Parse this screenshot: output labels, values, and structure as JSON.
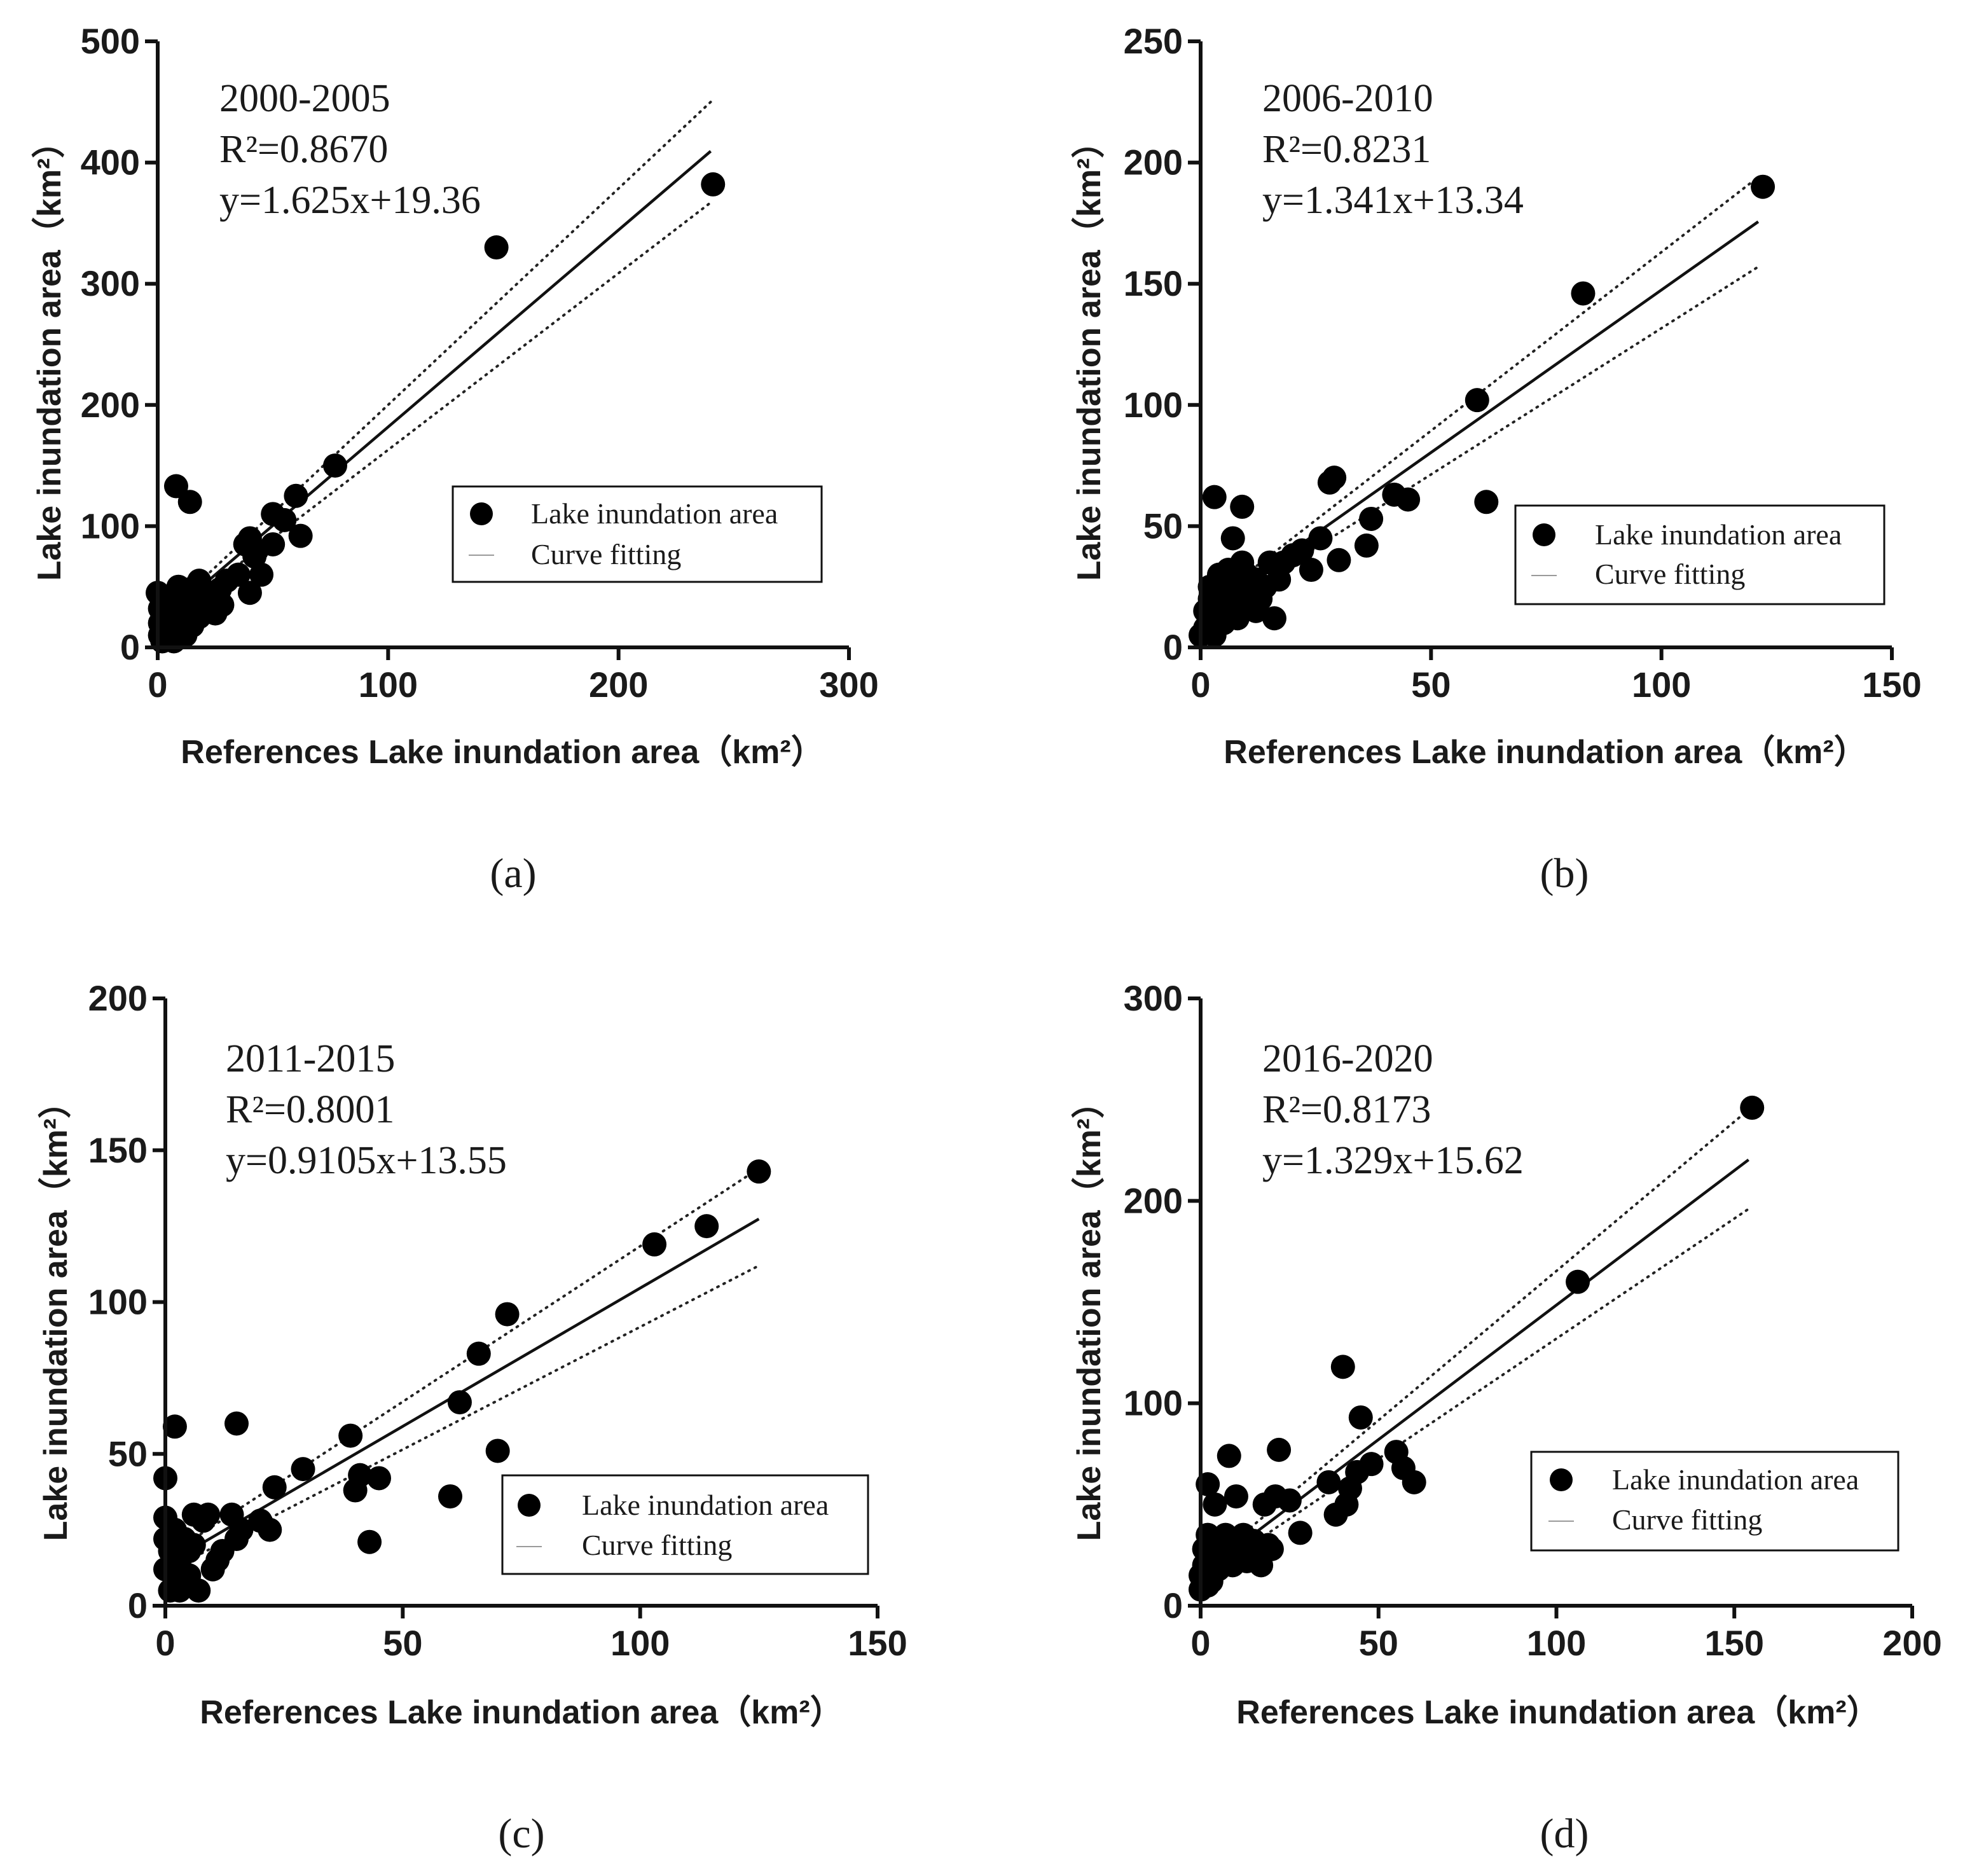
{
  "figure": {
    "panel_labels": [
      "(a)",
      "(b)",
      "(c)",
      "(d)"
    ],
    "legend_items": {
      "points": "Lake inundation area",
      "fit": "Curve fitting"
    }
  },
  "chart_data": [
    {
      "type": "scatter",
      "panel": "a",
      "label": "(a)",
      "period": "2000-2005",
      "r2_text": "R²=0.8670",
      "equation": "y=1.625x+19.36",
      "slope": 1.625,
      "intercept": 19.36,
      "ci_upper_end": 450,
      "ci_lower_end": 367,
      "fit_x_range": [
        5,
        240
      ],
      "xlabel": "References Lake inundation area（km²）",
      "ylabel": "Lake inundation area（km²）",
      "xlim": [
        0,
        300
      ],
      "ylim": [
        0,
        500
      ],
      "xticks": [
        0,
        100,
        200,
        300
      ],
      "yticks": [
        0,
        100,
        200,
        300,
        400,
        500
      ],
      "legend_position": "center-right",
      "points": [
        [
          0,
          45
        ],
        [
          1,
          32
        ],
        [
          1,
          20
        ],
        [
          1,
          10
        ],
        [
          2,
          5
        ],
        [
          2,
          28
        ],
        [
          3,
          15
        ],
        [
          3,
          38
        ],
        [
          4,
          8
        ],
        [
          5,
          25
        ],
        [
          5,
          18
        ],
        [
          6,
          10
        ],
        [
          6,
          40
        ],
        [
          7,
          30
        ],
        [
          7,
          5
        ],
        [
          8,
          20
        ],
        [
          8,
          35
        ],
        [
          9,
          15
        ],
        [
          9,
          50
        ],
        [
          10,
          28
        ],
        [
          10,
          42
        ],
        [
          11,
          22
        ],
        [
          12,
          30
        ],
        [
          12,
          10
        ],
        [
          13,
          38
        ],
        [
          14,
          25
        ],
        [
          14,
          48
        ],
        [
          15,
          35
        ],
        [
          15,
          18
        ],
        [
          16,
          42
        ],
        [
          16,
          30
        ],
        [
          17,
          45
        ],
        [
          18,
          55
        ],
        [
          18,
          25
        ],
        [
          19,
          35
        ],
        [
          20,
          40
        ],
        [
          21,
          30
        ],
        [
          22,
          45
        ],
        [
          24,
          38
        ],
        [
          25,
          28
        ],
        [
          27,
          48
        ],
        [
          28,
          35
        ],
        [
          30,
          55
        ],
        [
          35,
          60
        ],
        [
          38,
          85
        ],
        [
          40,
          90
        ],
        [
          40,
          45
        ],
        [
          42,
          75
        ],
        [
          43,
          80
        ],
        [
          45,
          60
        ],
        [
          50,
          110
        ],
        [
          50,
          85
        ],
        [
          55,
          105
        ],
        [
          60,
          125
        ],
        [
          62,
          92
        ],
        [
          77,
          150
        ],
        [
          8,
          133
        ],
        [
          14,
          120
        ],
        [
          147,
          330
        ],
        [
          241,
          382
        ]
      ]
    },
    {
      "type": "scatter",
      "panel": "b",
      "label": "(b)",
      "period": "2006-2010",
      "r2_text": "R²=0.8231",
      "equation": "y=1.341x+13.34",
      "slope": 1.341,
      "intercept": 13.34,
      "ci_upper_end": 194,
      "ci_lower_end": 157,
      "fit_x_range": [
        5,
        121
      ],
      "xlabel": "References Lake inundation area（km²）",
      "ylabel": "Lake inundation area（km²）",
      "xlim": [
        0,
        150
      ],
      "ylim": [
        0,
        250
      ],
      "xticks": [
        0,
        50,
        100,
        150
      ],
      "yticks": [
        0,
        50,
        100,
        150,
        200,
        250
      ],
      "legend_position": "center-right",
      "points": [
        [
          0,
          5
        ],
        [
          1,
          8
        ],
        [
          1,
          15
        ],
        [
          2,
          10
        ],
        [
          2,
          20
        ],
        [
          2,
          25
        ],
        [
          3,
          12
        ],
        [
          3,
          5
        ],
        [
          3,
          62
        ],
        [
          4,
          18
        ],
        [
          4,
          30
        ],
        [
          5,
          22
        ],
        [
          5,
          10
        ],
        [
          6,
          28
        ],
        [
          6,
          15
        ],
        [
          6,
          32
        ],
        [
          7,
          20
        ],
        [
          7,
          45
        ],
        [
          8,
          25
        ],
        [
          8,
          12
        ],
        [
          9,
          35
        ],
        [
          9,
          58
        ],
        [
          10,
          18
        ],
        [
          10,
          30
        ],
        [
          11,
          22
        ],
        [
          12,
          28
        ],
        [
          12,
          15
        ],
        [
          13,
          20
        ],
        [
          14,
          25
        ],
        [
          15,
          35
        ],
        [
          16,
          12
        ],
        [
          17,
          28
        ],
        [
          18,
          35
        ],
        [
          20,
          38
        ],
        [
          22,
          40
        ],
        [
          24,
          32
        ],
        [
          26,
          45
        ],
        [
          28,
          68
        ],
        [
          29,
          70
        ],
        [
          30,
          36
        ],
        [
          36,
          42
        ],
        [
          37,
          53
        ],
        [
          42,
          63
        ],
        [
          45,
          61
        ],
        [
          60,
          102
        ],
        [
          62,
          60
        ],
        [
          83,
          146
        ],
        [
          122,
          190
        ]
      ]
    },
    {
      "type": "scatter",
      "panel": "c",
      "label": "(c)",
      "period": "2011-2015",
      "r2_text": "R²=0.8001",
      "equation": "y=0.9105x+13.55",
      "slope": 0.9105,
      "intercept": 13.55,
      "ci_upper_end": 144,
      "ci_lower_end": 112,
      "fit_x_range": [
        5,
        125
      ],
      "xlabel": "References Lake inundation area（km²）",
      "ylabel": "Lake inundation area（km²）",
      "xlim": [
        0,
        150
      ],
      "ylim": [
        0,
        200
      ],
      "xticks": [
        0,
        50,
        100,
        150
      ],
      "yticks": [
        0,
        50,
        100,
        150,
        200
      ],
      "legend_position": "center-right",
      "points": [
        [
          0,
          42
        ],
        [
          0,
          29
        ],
        [
          0,
          22
        ],
        [
          0,
          12
        ],
        [
          1,
          5
        ],
        [
          1,
          18
        ],
        [
          2,
          8
        ],
        [
          2,
          25
        ],
        [
          2,
          59
        ],
        [
          3,
          15
        ],
        [
          3,
          5
        ],
        [
          4,
          22
        ],
        [
          5,
          10
        ],
        [
          5,
          18
        ],
        [
          6,
          30
        ],
        [
          6,
          20
        ],
        [
          7,
          5
        ],
        [
          8,
          28
        ],
        [
          9,
          30
        ],
        [
          10,
          12
        ],
        [
          11,
          15
        ],
        [
          12,
          18
        ],
        [
          14,
          30
        ],
        [
          15,
          22
        ],
        [
          15,
          60
        ],
        [
          16,
          25
        ],
        [
          20,
          28
        ],
        [
          22,
          25
        ],
        [
          23,
          39
        ],
        [
          29,
          45
        ],
        [
          39,
          56
        ],
        [
          40,
          38
        ],
        [
          41,
          43
        ],
        [
          43,
          21
        ],
        [
          45,
          42
        ],
        [
          60,
          36
        ],
        [
          62,
          67
        ],
        [
          66,
          83
        ],
        [
          70,
          51
        ],
        [
          72,
          96
        ],
        [
          103,
          119
        ],
        [
          114,
          125
        ],
        [
          125,
          143
        ]
      ]
    },
    {
      "type": "scatter",
      "panel": "d",
      "label": "(d)",
      "period": "2016-2020",
      "r2_text": "R²=0.8173",
      "equation": "y=1.329x+15.62",
      "slope": 1.329,
      "intercept": 15.62,
      "ci_upper_end": 245,
      "ci_lower_end": 196,
      "fit_x_range": [
        5,
        154
      ],
      "xlabel": "References Lake inundation area（km²）",
      "ylabel": "Lake inundation area（km²）",
      "xlim": [
        0,
        200
      ],
      "ylim": [
        0,
        300
      ],
      "xticks": [
        0,
        50,
        100,
        150,
        200
      ],
      "yticks": [
        0,
        100,
        200,
        300
      ],
      "legend_position": "center-right",
      "points": [
        [
          0,
          8
        ],
        [
          0,
          15
        ],
        [
          1,
          20
        ],
        [
          1,
          28
        ],
        [
          2,
          10
        ],
        [
          2,
          35
        ],
        [
          2,
          60
        ],
        [
          3,
          25
        ],
        [
          3,
          12
        ],
        [
          4,
          50
        ],
        [
          5,
          30
        ],
        [
          5,
          18
        ],
        [
          6,
          22
        ],
        [
          7,
          35
        ],
        [
          8,
          28
        ],
        [
          8,
          74
        ],
        [
          9,
          20
        ],
        [
          10,
          54
        ],
        [
          10,
          30
        ],
        [
          11,
          25
        ],
        [
          12,
          35
        ],
        [
          13,
          22
        ],
        [
          14,
          28
        ],
        [
          15,
          32
        ],
        [
          16,
          25
        ],
        [
          17,
          20
        ],
        [
          18,
          50
        ],
        [
          19,
          30
        ],
        [
          20,
          28
        ],
        [
          21,
          54
        ],
        [
          22,
          77
        ],
        [
          25,
          52
        ],
        [
          28,
          36
        ],
        [
          36,
          61
        ],
        [
          38,
          45
        ],
        [
          40,
          118
        ],
        [
          41,
          50
        ],
        [
          42,
          58
        ],
        [
          44,
          66
        ],
        [
          45,
          93
        ],
        [
          48,
          70
        ],
        [
          55,
          76
        ],
        [
          57,
          68
        ],
        [
          60,
          61
        ],
        [
          106,
          160
        ],
        [
          155,
          246
        ]
      ]
    }
  ]
}
